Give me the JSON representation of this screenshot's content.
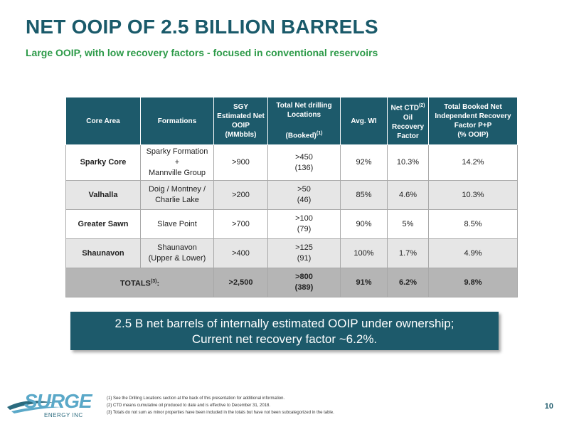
{
  "title": "NET OOIP OF 2.5 BILLION BARRELS",
  "subtitle": "Large OOIP, with low recovery factors - focused in conventional reservoirs",
  "table": {
    "headers": {
      "core_area": "Core Area",
      "formations": "Formations",
      "ooip_l1": "SGY",
      "ooip_l2": "Estimated Net",
      "ooip_l3": "OOIP",
      "ooip_l4": "(MMbbls)",
      "drill_l1": "Total Net drilling",
      "drill_l2": "Locations",
      "drill_l3": "(Booked)",
      "drill_sup": "(1)",
      "wi": "Avg. WI",
      "ctd_l1": "Net CTD",
      "ctd_sup": "(2)",
      "ctd_l2": "Oil",
      "ctd_l3": "Recovery",
      "ctd_l4": "Factor",
      "rec_l1": "Total Booked Net",
      "rec_l2": "Independent Recovery",
      "rec_l3": "Factor P+P",
      "rec_l4": "(% OOIP)"
    },
    "rows": [
      {
        "area": "Sparky Core",
        "form1": "Sparky Formation +",
        "form2": "Mannville Group",
        "ooip": ">900",
        "loc": ">450",
        "booked": "(136)",
        "wi": "92%",
        "ctd": "10.3%",
        "rec": "14.2%"
      },
      {
        "area": "Valhalla",
        "form1": "Doig / Montney /",
        "form2": "Charlie Lake",
        "ooip": ">200",
        "loc": ">50",
        "booked": "(46)",
        "wi": "85%",
        "ctd": "4.6%",
        "rec": "10.3%"
      },
      {
        "area": "Greater Sawn",
        "form1": "Slave Point",
        "form2": "",
        "ooip": ">700",
        "loc": ">100",
        "booked": "(79)",
        "wi": "90%",
        "ctd": "5%",
        "rec": "8.5%"
      },
      {
        "area": "Shaunavon",
        "form1": "Shaunavon",
        "form2": "(Upper & Lower)",
        "ooip": ">400",
        "loc": ">125",
        "booked": "(91)",
        "wi": "100%",
        "ctd": "1.7%",
        "rec": "4.9%"
      }
    ],
    "totals": {
      "label": "TOTALS",
      "sup": "(3)",
      "colon": ":",
      "ooip": ">2,500",
      "loc": ">800",
      "booked": "(389)",
      "wi": "91%",
      "ctd": "6.2%",
      "rec": "9.8%"
    }
  },
  "callout": {
    "line1": "2.5 B net barrels of internally estimated OOIP under ownership;",
    "line2": "Current net recovery factor ~6.2%."
  },
  "logo": {
    "word": "SURGE",
    "sub": "ENERGY INC"
  },
  "footnotes": [
    "(1) See the Drilling Locations section at the back of this presentation for additional information.",
    "(2) CTD means cumulative oil produced to date and is effective to December 31, 2018.",
    "(3) Totals do not sum as minor properties have been included in the totals but have not been subcategorized in the table."
  ],
  "page_number": "10",
  "colors": {
    "title": "#1a5a6a",
    "subtitle": "#2c9a48",
    "header_bg": "#1d5a6b",
    "alt_row": "#e6e6e6",
    "totals_row": "#b5b5b5"
  }
}
